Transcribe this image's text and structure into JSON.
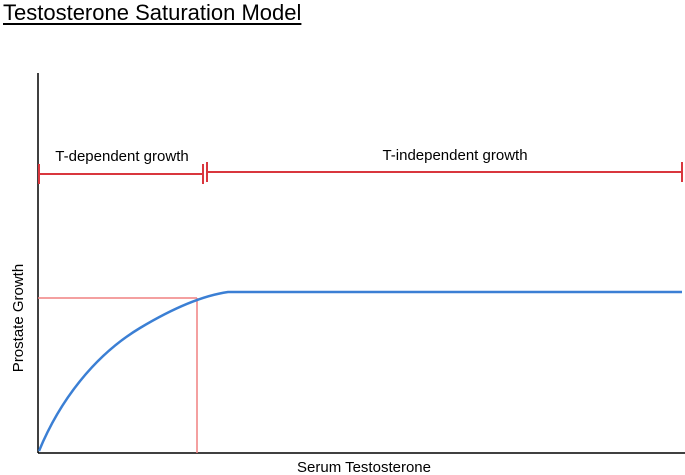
{
  "title": "Testosterone Saturation Model",
  "axes": {
    "x_label": "Serum Testosterone",
    "y_label": "Prostate Growth"
  },
  "regions": {
    "dependent_label": "T-dependent growth",
    "independent_label": "T-independent growth"
  },
  "colors": {
    "curve": "#3b7fd4",
    "bracket": "#d9363e",
    "reference_line": "#f08080",
    "axis": "#000000"
  }
}
